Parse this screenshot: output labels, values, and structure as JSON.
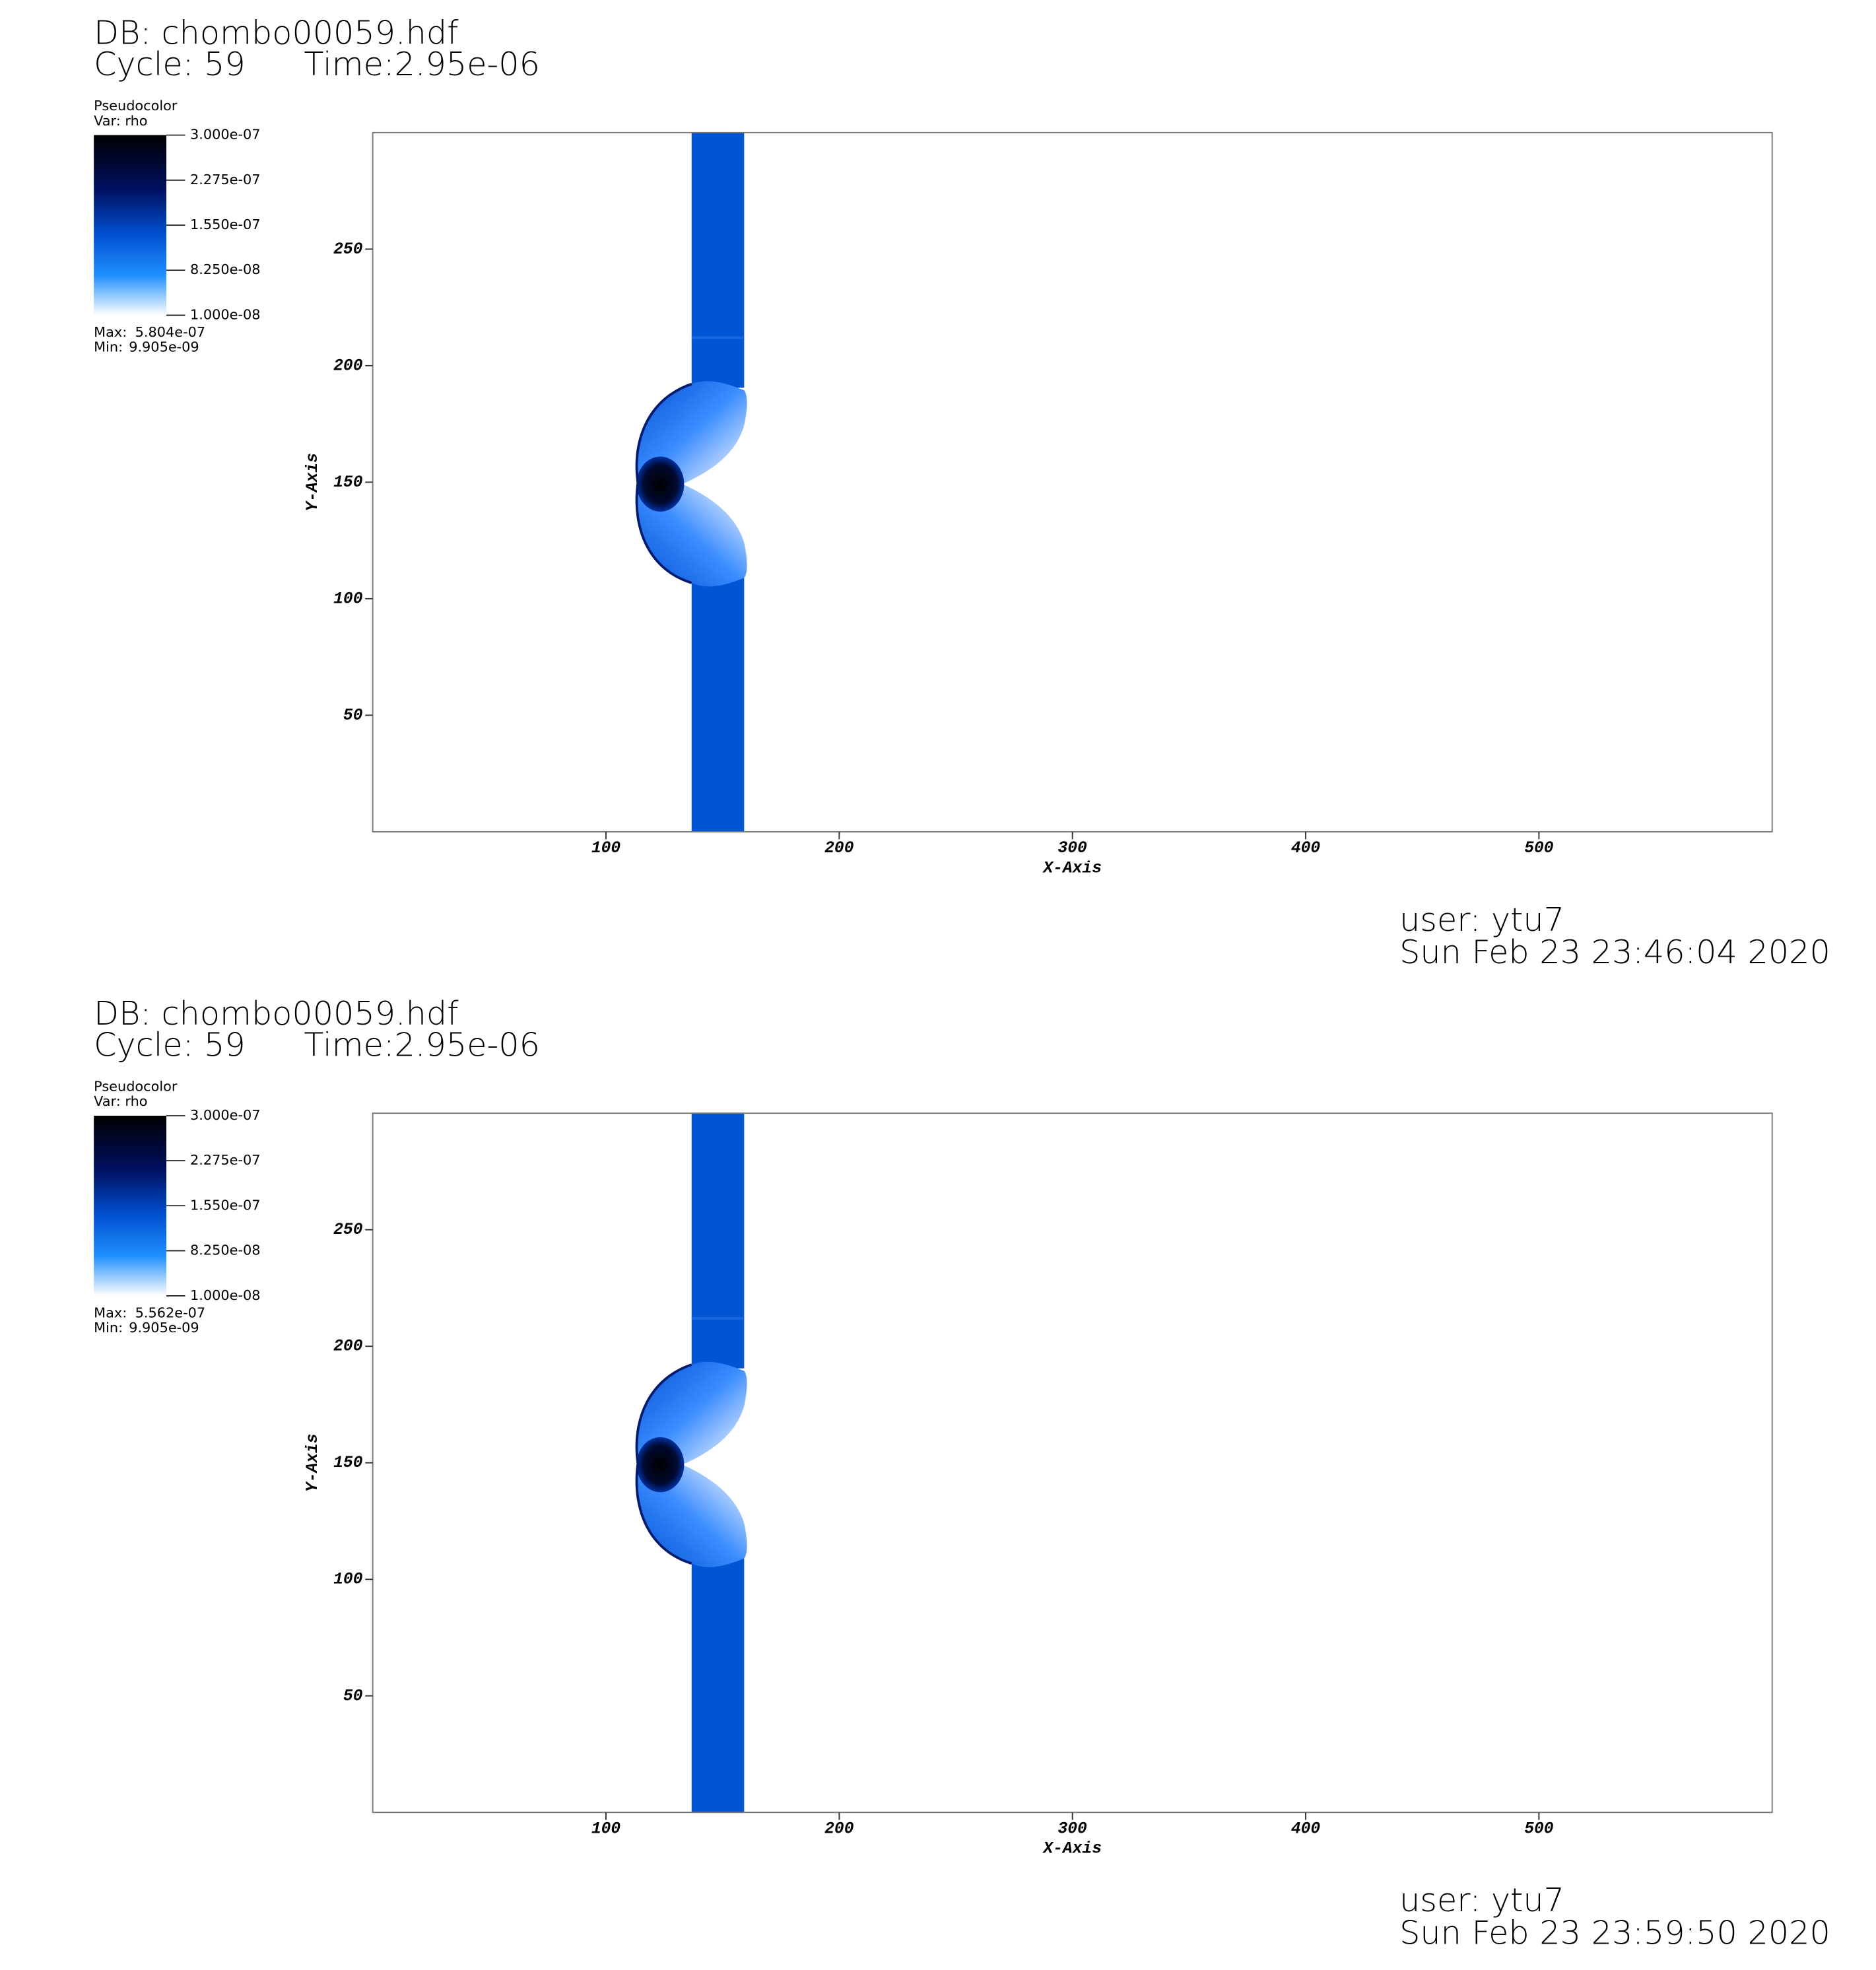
{
  "chart_data": [
    {
      "type": "pseudocolor",
      "title": "DB: chombo00059.hdf",
      "cycle": "Cycle: 59",
      "time": "Time:2.95e-06",
      "legend_title": "Pseudocolor",
      "variable": "Var: rho",
      "clim": [
        1e-08,
        3e-07
      ],
      "colorbar_ticks": [
        {
          "value": 3e-07,
          "label": "3.000e-07"
        },
        {
          "value": 2.275e-07,
          "label": "2.275e-07"
        },
        {
          "value": 1.55e-07,
          "label": "1.550e-07"
        },
        {
          "value": 8.25e-08,
          "label": "8.250e-08"
        },
        {
          "value": 1e-08,
          "label": "1.000e-08"
        }
      ],
      "max_label": "Max:",
      "max": {
        "value": 5.804e-07,
        "label": "5.804e-07"
      },
      "min_label": "Min:",
      "min": {
        "value": 9.905e-09,
        "label": "9.905e-09"
      },
      "xlabel": "X-Axis",
      "ylabel": "Y-Axis",
      "xlim": [
        0,
        600
      ],
      "ylim": [
        0,
        300
      ],
      "xticks": [
        100,
        200,
        300,
        400,
        500
      ],
      "yticks": [
        50,
        100,
        150,
        200,
        250
      ],
      "user": "user: ytu7",
      "date": "Sun Feb 23 23:46:04 2020"
    },
    {
      "type": "pseudocolor",
      "title": "DB: chombo00059.hdf",
      "cycle": "Cycle: 59",
      "time": "Time:2.95e-06",
      "legend_title": "Pseudocolor",
      "variable": "Var: rho",
      "clim": [
        1e-08,
        3e-07
      ],
      "colorbar_ticks": [
        {
          "value": 3e-07,
          "label": "3.000e-07"
        },
        {
          "value": 2.275e-07,
          "label": "2.275e-07"
        },
        {
          "value": 1.55e-07,
          "label": "1.550e-07"
        },
        {
          "value": 8.25e-08,
          "label": "8.250e-08"
        },
        {
          "value": 1e-08,
          "label": "1.000e-08"
        }
      ],
      "max_label": "Max:",
      "max": {
        "value": 5.562e-07,
        "label": "5.562e-07"
      },
      "min_label": "Min:",
      "min": {
        "value": 9.905e-09,
        "label": "9.905e-09"
      },
      "xlabel": "X-Axis",
      "ylabel": "Y-Axis",
      "xlim": [
        0,
        600
      ],
      "ylim": [
        0,
        300
      ],
      "xticks": [
        100,
        200,
        300,
        400,
        500
      ],
      "yticks": [
        50,
        100,
        150,
        200,
        250
      ],
      "user": "user: ytu7",
      "date": "Sun Feb 23 23:59:50 2020"
    }
  ]
}
